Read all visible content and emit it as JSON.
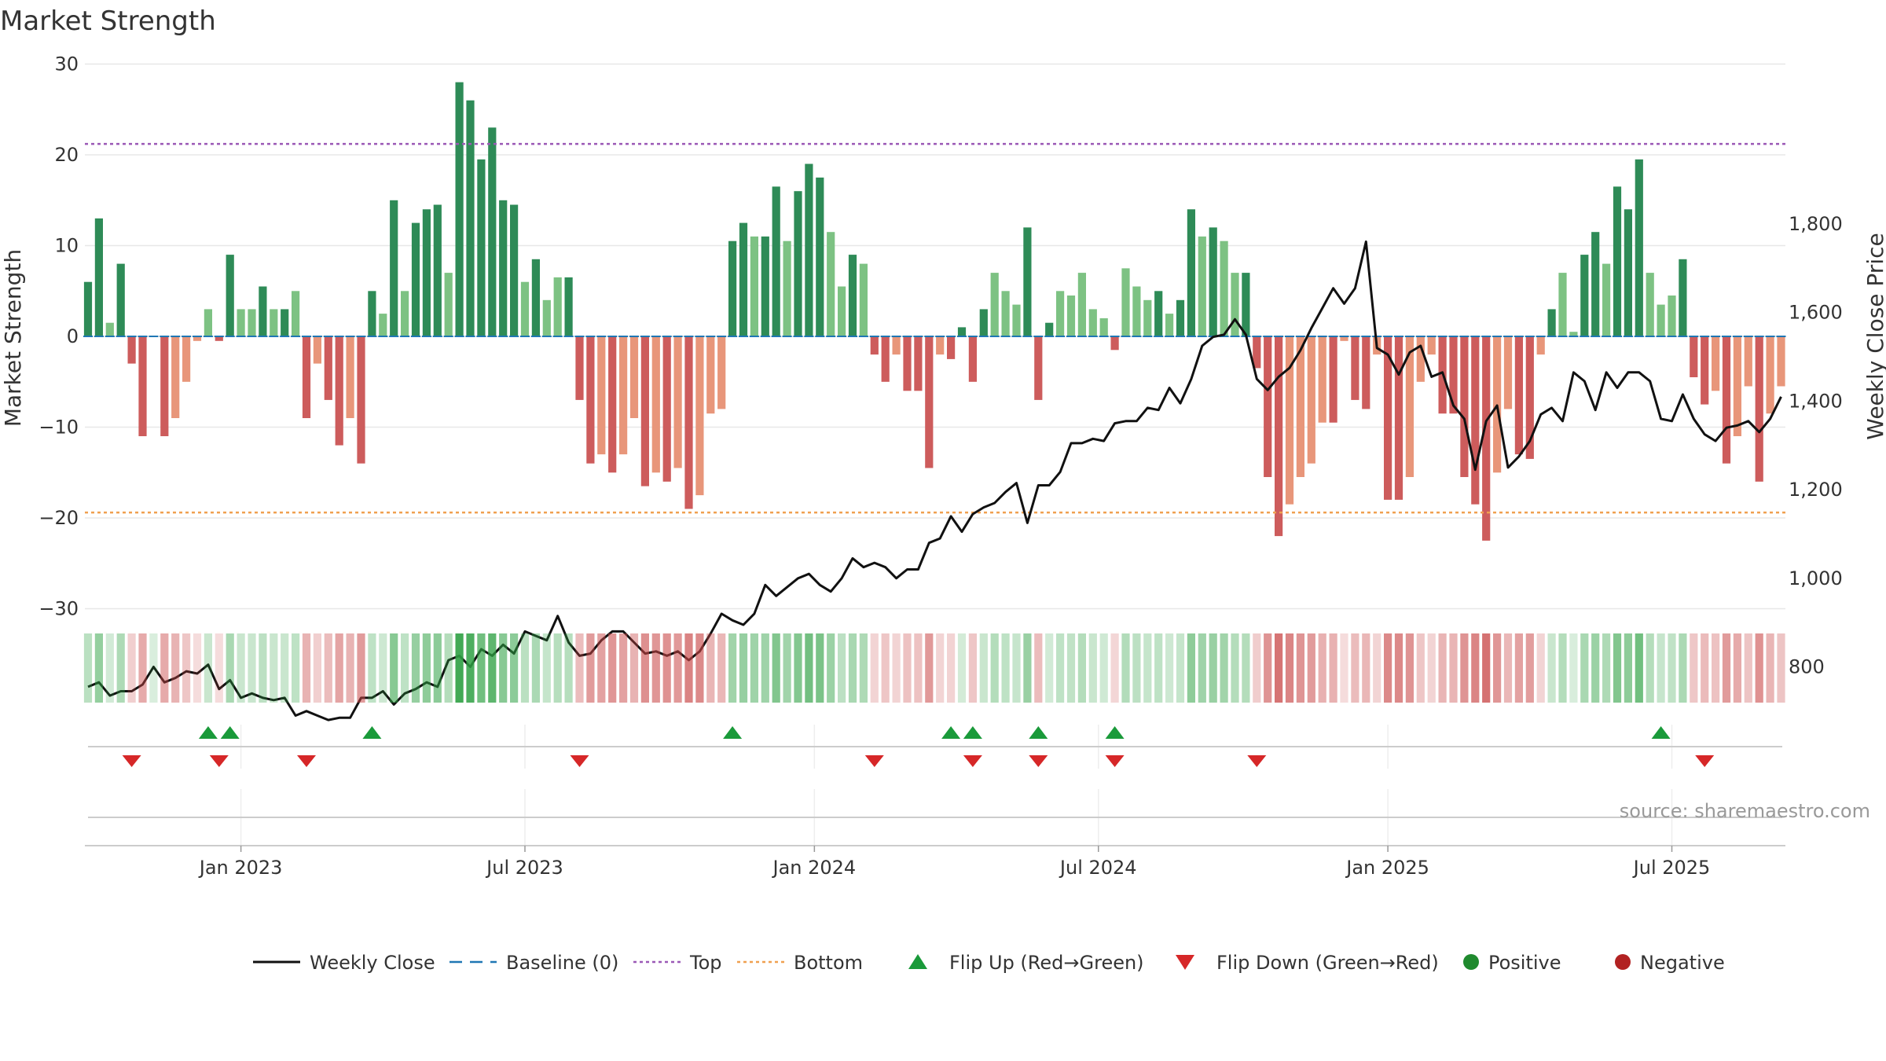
{
  "chart_data": {
    "type": "bar",
    "title": "Market Strength",
    "ylabel_left": "Market Strength",
    "ylabel_right": "Weekly Close Price",
    "source": "source: sharemaestro.com",
    "y_left_range": [
      -30,
      30
    ],
    "y_left_ticks": [
      30,
      20,
      10,
      0,
      -10,
      -20,
      -30
    ],
    "y_left_tick_labels": [
      "30",
      "20",
      "10",
      "0",
      "−10",
      "−20",
      "−30"
    ],
    "y_right_range": [
      640,
      1860
    ],
    "y_right_ticks": [
      1800,
      1600,
      1400,
      1200,
      1000,
      800
    ],
    "y_right_tick_labels": [
      "1,800",
      "1,600",
      "1,400",
      "1,200",
      "1,000",
      "800"
    ],
    "top_level": 21.2,
    "bottom_level": -19.4,
    "x_ticks": [
      {
        "label": "Jan 2023",
        "week": 14
      },
      {
        "label": "Jul 2023",
        "week": 40
      },
      {
        "label": "Jan 2024",
        "week": 66.5
      },
      {
        "label": "Jul 2024",
        "week": 92.5
      },
      {
        "label": "Jan 2025",
        "week": 119
      },
      {
        "label": "Jul 2025",
        "week": 145
      }
    ],
    "strength": [
      6,
      13,
      1.5,
      8,
      -3,
      -11,
      0,
      -11,
      -9,
      -5,
      -0.5,
      3,
      -0.5,
      9,
      3,
      3,
      5.5,
      3,
      3,
      5,
      -9,
      -3,
      -7,
      -12,
      -9,
      -14,
      5,
      2.5,
      15,
      5,
      12.5,
      14,
      14.5,
      7,
      28,
      26,
      19.5,
      23,
      15,
      14.5,
      6,
      8.5,
      4,
      6.5,
      6.5,
      -7,
      -14,
      -13,
      -15,
      -13,
      -9,
      -16.5,
      -15,
      -16,
      -14.5,
      -19,
      -17.5,
      -8.5,
      -8,
      10.5,
      12.5,
      11,
      11,
      16.5,
      10.5,
      16,
      19,
      17.5,
      11.5,
      5.5,
      9,
      8,
      -2,
      -5,
      -2,
      -6,
      -6,
      -14.5,
      -2,
      -2.5,
      1,
      -5,
      3,
      7,
      5,
      3.5,
      12,
      -7,
      1.5,
      5,
      4.5,
      7,
      3,
      2,
      -1.5,
      7.5,
      5.5,
      4,
      5,
      2.5,
      4,
      14,
      11,
      12,
      10.5,
      7,
      7,
      -3.5,
      -15.5,
      -22,
      -18.5,
      -15.5,
      -14,
      -9.5,
      -9.5,
      -0.5,
      -7,
      -8,
      -2,
      -18,
      -18,
      -15.5,
      -5,
      -2,
      -8.5,
      -8.5,
      -15.5,
      -18.5,
      -22.5,
      -15,
      -8,
      -13,
      -13.5,
      -2,
      3,
      7,
      0.5,
      9,
      11.5,
      8,
      16.5,
      14,
      19.5,
      7,
      3.5,
      4.5,
      8.5,
      -4.5,
      -7.5,
      -6,
      -14,
      -11,
      -5.5,
      -16,
      -8.5,
      -5.5
    ],
    "close": [
      755,
      765,
      735,
      745,
      745,
      760,
      800,
      765,
      775,
      790,
      785,
      805,
      750,
      770,
      730,
      740,
      730,
      725,
      730,
      690,
      700,
      690,
      680,
      685,
      685,
      730,
      730,
      745,
      715,
      740,
      750,
      765,
      755,
      815,
      825,
      800,
      840,
      825,
      850,
      830,
      880,
      870,
      860,
      915,
      855,
      825,
      830,
      860,
      880,
      880,
      855,
      830,
      835,
      825,
      835,
      815,
      835,
      875,
      920,
      905,
      895,
      920,
      985,
      960,
      980,
      1000,
      1010,
      985,
      970,
      1000,
      1045,
      1025,
      1035,
      1025,
      1000,
      1020,
      1020,
      1080,
      1090,
      1140,
      1105,
      1145,
      1160,
      1170,
      1195,
      1215,
      1125,
      1210,
      1210,
      1240,
      1305,
      1305,
      1315,
      1310,
      1350,
      1355,
      1355,
      1385,
      1380,
      1430,
      1395,
      1450,
      1525,
      1545,
      1550,
      1585,
      1550,
      1450,
      1425,
      1455,
      1475,
      1515,
      1565,
      1610,
      1655,
      1620,
      1655,
      1760,
      1520,
      1505,
      1460,
      1510,
      1525,
      1455,
      1465,
      1390,
      1360,
      1245,
      1355,
      1390,
      1250,
      1275,
      1310,
      1370,
      1385,
      1355,
      1465,
      1445,
      1380,
      1465,
      1430,
      1465,
      1465,
      1445,
      1360,
      1355,
      1415,
      1360,
      1325,
      1310,
      1340,
      1345,
      1355,
      1330,
      1360,
      1410
    ],
    "flip_up_weeks": [
      11,
      13,
      26,
      59,
      79,
      81,
      87,
      94,
      144
    ],
    "flip_down_weeks": [
      4,
      12,
      20,
      45,
      72,
      81,
      87,
      94,
      107,
      148
    ],
    "legend": [
      {
        "key": "weekly_close",
        "label": "Weekly Close",
        "color": "#111111"
      },
      {
        "key": "baseline",
        "label": "Baseline (0)",
        "color": "#1f77b4"
      },
      {
        "key": "top",
        "label": "Top",
        "color": "#9b59b6"
      },
      {
        "key": "bottom",
        "label": "Bottom",
        "color": "#f0a050"
      },
      {
        "key": "flip_up",
        "label": "Flip Up (Red→Green)",
        "color": "#1a9a3a"
      },
      {
        "key": "flip_down",
        "label": "Flip Down (Green→Red)",
        "color": "#d62728"
      },
      {
        "key": "positive",
        "label": "Positive",
        "color": "#1f8a2e"
      },
      {
        "key": "negative",
        "label": "Negative",
        "color": "#b22222"
      }
    ],
    "colors": {
      "pos_dark": "#2e8b57",
      "pos_light": "#7dc283",
      "neg_dark": "#cd5c5c",
      "neg_light": "#e8967a",
      "close_line": "#111111",
      "baseline": "#1f77b4",
      "top_line": "#9b59b6",
      "bottom_line": "#f0a050",
      "grid": "#e8e8e8"
    }
  }
}
